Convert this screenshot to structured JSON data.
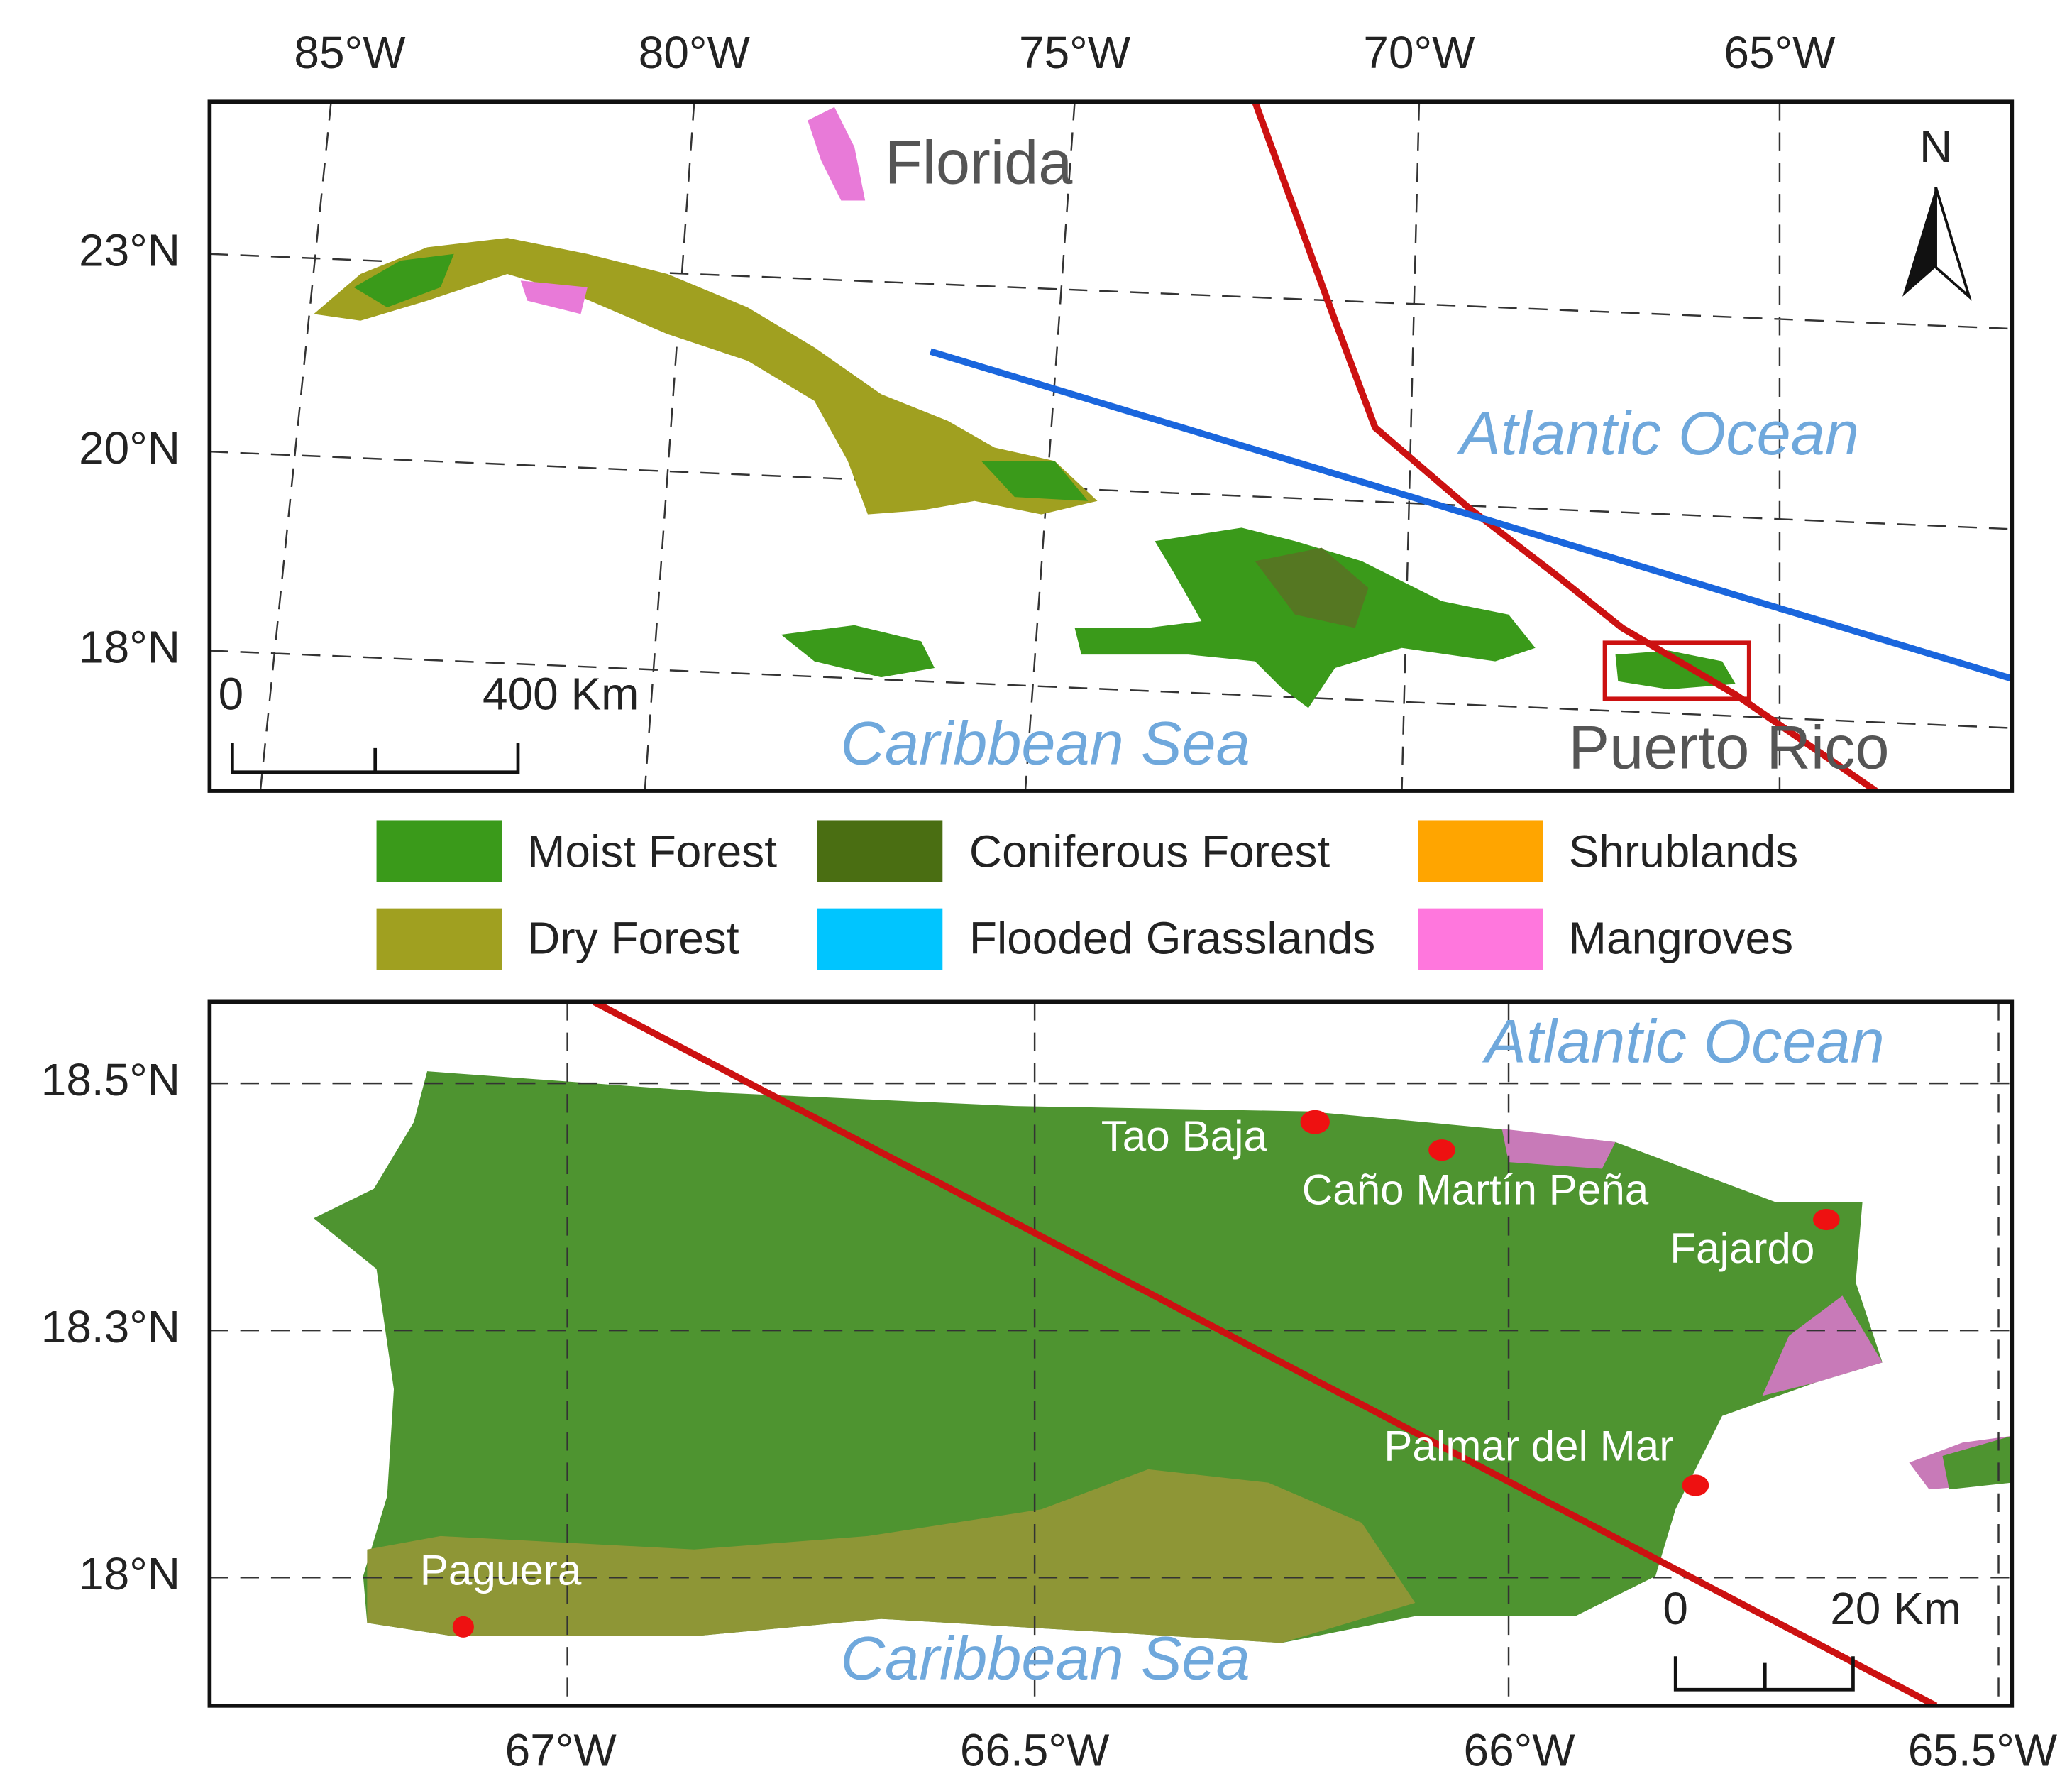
{
  "top_map": {
    "lon_labels": [
      "85°W",
      "80°W",
      "75°W",
      "70°W",
      "65°W"
    ],
    "lat_labels": [
      "23°N",
      "20°N",
      "18°N"
    ],
    "places": {
      "florida": "Florida",
      "atlantic": "Atlantic Ocean",
      "caribbean": "Caribbean Sea",
      "puerto_rico": "Puerto Rico"
    },
    "north": "N",
    "scale": [
      "0",
      "400 Km"
    ]
  },
  "legend": [
    "Moist Forest",
    "Coniferous Forest",
    "Shrublands",
    "Dry Forest",
    "Flooded Grasslands",
    "Mangroves"
  ],
  "bottom_map": {
    "lat_labels": [
      "18.5°N",
      "18.3°N",
      "18°N"
    ],
    "lon_labels": [
      "67°W",
      "66.5°W",
      "66°W",
      "65.5°W"
    ],
    "places": {
      "atlantic": "Atlantic Ocean",
      "caribbean": "Caribbean Sea",
      "tao_baja": "Tao Baja",
      "cano": "Caño Martín Peña",
      "fajardo": "Fajardo",
      "palmar": "Palmar del Mar",
      "paguera": "Paguera"
    },
    "scale": [
      "0",
      "20 Km"
    ]
  }
}
